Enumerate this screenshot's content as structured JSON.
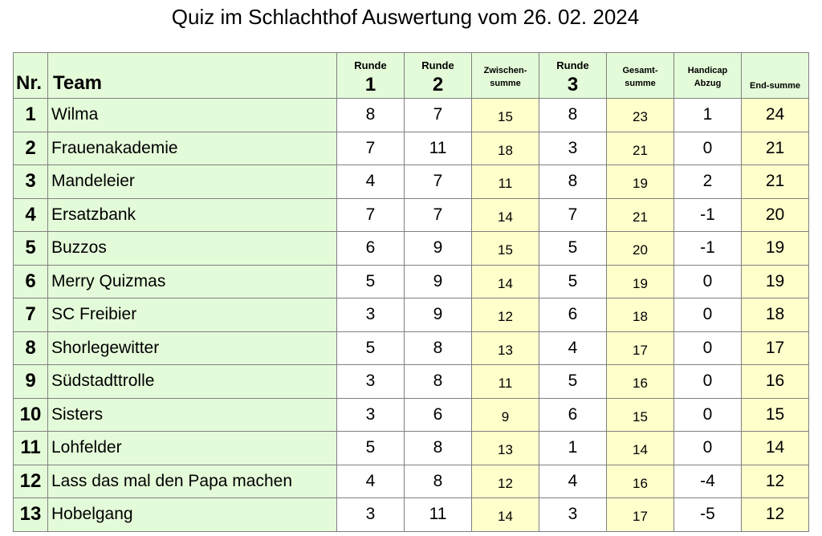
{
  "title": "Quiz im Schlachthof Auswertung vom 26. 02. 2024",
  "colors": {
    "header_bg": "#e4fbd9",
    "highlight_bg": "#ffffcc",
    "border": "#808080"
  },
  "columns": {
    "nr": "Nr.",
    "team": "Team",
    "r1_label": "Runde",
    "r1_num": "1",
    "r2_label": "Runde",
    "r2_num": "2",
    "zw_line1": "Zwischen-",
    "zw_line2": "summe",
    "r3_label": "Runde",
    "r3_num": "3",
    "ges_line1": "Gesamt-",
    "ges_line2": "summe",
    "hc_line1": "Handicap",
    "hc_line2": "Abzug",
    "end": "End-summe"
  },
  "rows": [
    {
      "nr": "1",
      "team": "Wilma",
      "r1": "8",
      "r2": "7",
      "zw": "15",
      "r3": "8",
      "ges": "23",
      "hc": "1",
      "end": "24"
    },
    {
      "nr": "2",
      "team": "Frauenakademie",
      "r1": "7",
      "r2": "11",
      "zw": "18",
      "r3": "3",
      "ges": "21",
      "hc": "0",
      "end": "21"
    },
    {
      "nr": "3",
      "team": "Mandeleier",
      "r1": "4",
      "r2": "7",
      "zw": "11",
      "r3": "8",
      "ges": "19",
      "hc": "2",
      "end": "21"
    },
    {
      "nr": "4",
      "team": "Ersatzbank",
      "r1": "7",
      "r2": "7",
      "zw": "14",
      "r3": "7",
      "ges": "21",
      "hc": "-1",
      "end": "20"
    },
    {
      "nr": "5",
      "team": "Buzzos",
      "r1": "6",
      "r2": "9",
      "zw": "15",
      "r3": "5",
      "ges": "20",
      "hc": "-1",
      "end": "19"
    },
    {
      "nr": "6",
      "team": "Merry Quizmas",
      "r1": "5",
      "r2": "9",
      "zw": "14",
      "r3": "5",
      "ges": "19",
      "hc": "0",
      "end": "19"
    },
    {
      "nr": "7",
      "team": "SC Freibier",
      "r1": "3",
      "r2": "9",
      "zw": "12",
      "r3": "6",
      "ges": "18",
      "hc": "0",
      "end": "18"
    },
    {
      "nr": "8",
      "team": "Shorlegewitter",
      "r1": "5",
      "r2": "8",
      "zw": "13",
      "r3": "4",
      "ges": "17",
      "hc": "0",
      "end": "17"
    },
    {
      "nr": "9",
      "team": "Südstadttrolle",
      "r1": "3",
      "r2": "8",
      "zw": "11",
      "r3": "5",
      "ges": "16",
      "hc": "0",
      "end": "16"
    },
    {
      "nr": "10",
      "team": "Sisters",
      "r1": "3",
      "r2": "6",
      "zw": "9",
      "r3": "6",
      "ges": "15",
      "hc": "0",
      "end": "15"
    },
    {
      "nr": "11",
      "team": "Lohfelder",
      "r1": "5",
      "r2": "8",
      "zw": "13",
      "r3": "1",
      "ges": "14",
      "hc": "0",
      "end": "14"
    },
    {
      "nr": "12",
      "team": "Lass das mal den Papa machen",
      "r1": "4",
      "r2": "8",
      "zw": "12",
      "r3": "4",
      "ges": "16",
      "hc": "-4",
      "end": "12"
    },
    {
      "nr": "13",
      "team": "Hobelgang",
      "r1": "3",
      "r2": "11",
      "zw": "14",
      "r3": "3",
      "ges": "17",
      "hc": "-5",
      "end": "12"
    }
  ]
}
